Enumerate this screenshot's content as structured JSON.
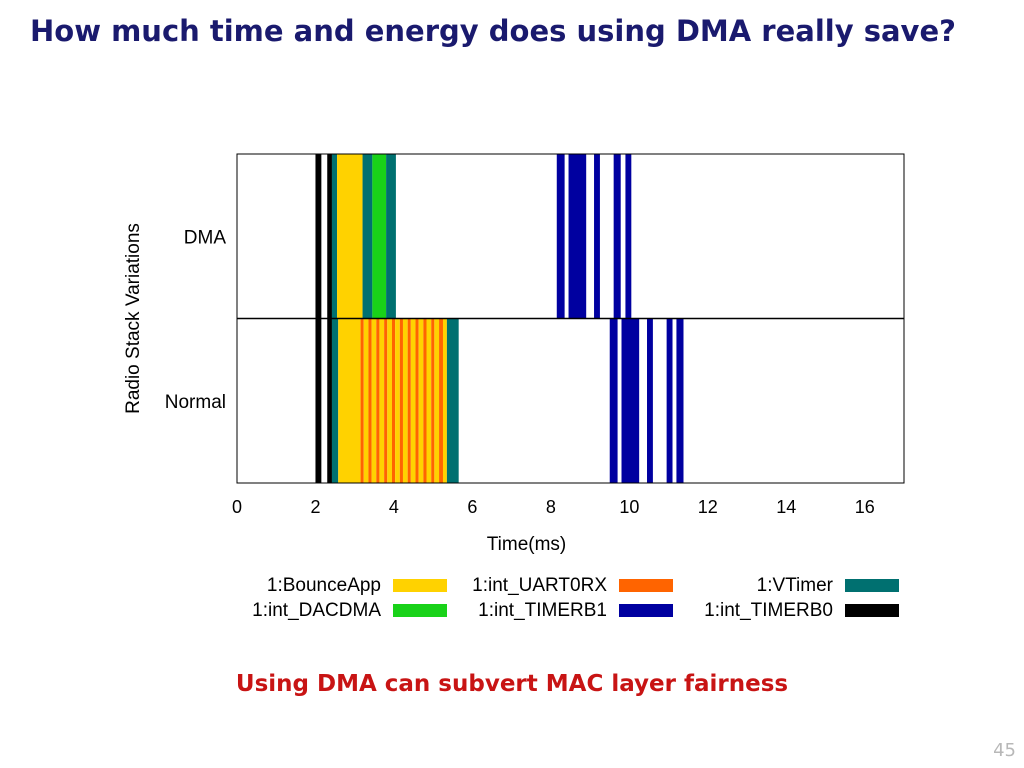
{
  "slide": {
    "title": "How much time and energy does using DMA really save?",
    "callout": "Using DMA can subvert MAC layer fairness",
    "page_number": "45"
  },
  "colors": {
    "title": "#1a1a6e",
    "callout": "#c81414",
    "page_number": "#b8b8b8"
  },
  "chart_data": {
    "type": "timeline",
    "xlabel": "Time(ms)",
    "ylabel": "Radio Stack Variations",
    "xlim": [
      0,
      17
    ],
    "xticks": [
      0,
      2,
      4,
      6,
      8,
      10,
      12,
      14,
      16
    ],
    "grid": false,
    "legend_position": "bottom",
    "categories": [
      "DMA",
      "Normal"
    ],
    "series": [
      {
        "name": "1:BounceApp",
        "color": "#ffd200"
      },
      {
        "name": "1:int_UART0RX",
        "color": "#ff6400"
      },
      {
        "name": "1:VTimer",
        "color": "#007070"
      },
      {
        "name": "1:int_DACDMA",
        "color": "#19d219"
      },
      {
        "name": "1:int_TIMERB1",
        "color": "#0000a0"
      },
      {
        "name": "1:int_TIMERB0",
        "color": "#000000"
      }
    ],
    "events": {
      "DMA": [
        {
          "series": "1:int_TIMERB0",
          "start": 2.0,
          "end": 2.15
        },
        {
          "series": "1:int_TIMERB0",
          "start": 2.3,
          "end": 2.42
        },
        {
          "series": "1:VTimer",
          "start": 2.42,
          "end": 2.55
        },
        {
          "series": "1:BounceApp",
          "start": 2.55,
          "end": 3.2
        },
        {
          "series": "1:VTimer",
          "start": 3.2,
          "end": 3.45
        },
        {
          "series": "1:int_DACDMA",
          "start": 3.45,
          "end": 3.8
        },
        {
          "series": "1:VTimer",
          "start": 3.8,
          "end": 4.05
        },
        {
          "series": "1:int_TIMERB1",
          "start": 8.15,
          "end": 8.35
        },
        {
          "series": "1:int_TIMERB1",
          "start": 8.45,
          "end": 8.9
        },
        {
          "series": "1:int_TIMERB1",
          "start": 9.1,
          "end": 9.25
        },
        {
          "series": "1:int_TIMERB1",
          "start": 9.6,
          "end": 9.78
        },
        {
          "series": "1:int_TIMERB1",
          "start": 9.9,
          "end": 10.05
        }
      ],
      "Normal": [
        {
          "series": "1:int_TIMERB0",
          "start": 2.0,
          "end": 2.15
        },
        {
          "series": "1:int_TIMERB0",
          "start": 2.3,
          "end": 2.42
        },
        {
          "series": "1:VTimer",
          "start": 2.42,
          "end": 2.58
        },
        {
          "series": "1:BounceApp",
          "start": 2.58,
          "end": 3.15
        },
        {
          "series": "1:int_UART0RX",
          "start": 3.15,
          "end": 3.23
        },
        {
          "series": "1:BounceApp",
          "start": 3.23,
          "end": 3.35
        },
        {
          "series": "1:int_UART0RX",
          "start": 3.35,
          "end": 3.43
        },
        {
          "series": "1:BounceApp",
          "start": 3.43,
          "end": 3.55
        },
        {
          "series": "1:int_UART0RX",
          "start": 3.55,
          "end": 3.63
        },
        {
          "series": "1:BounceApp",
          "start": 3.63,
          "end": 3.75
        },
        {
          "series": "1:int_UART0RX",
          "start": 3.75,
          "end": 3.83
        },
        {
          "series": "1:BounceApp",
          "start": 3.83,
          "end": 3.95
        },
        {
          "series": "1:int_UART0RX",
          "start": 3.95,
          "end": 4.03
        },
        {
          "series": "1:BounceApp",
          "start": 4.03,
          "end": 4.15
        },
        {
          "series": "1:int_UART0RX",
          "start": 4.15,
          "end": 4.23
        },
        {
          "series": "1:BounceApp",
          "start": 4.23,
          "end": 4.35
        },
        {
          "series": "1:int_UART0RX",
          "start": 4.35,
          "end": 4.43
        },
        {
          "series": "1:BounceApp",
          "start": 4.43,
          "end": 4.55
        },
        {
          "series": "1:int_UART0RX",
          "start": 4.55,
          "end": 4.63
        },
        {
          "series": "1:BounceApp",
          "start": 4.63,
          "end": 4.75
        },
        {
          "series": "1:int_UART0RX",
          "start": 4.75,
          "end": 4.83
        },
        {
          "series": "1:BounceApp",
          "start": 4.83,
          "end": 4.95
        },
        {
          "series": "1:int_UART0RX",
          "start": 4.95,
          "end": 5.03
        },
        {
          "series": "1:BounceApp",
          "start": 5.03,
          "end": 5.15
        },
        {
          "series": "1:int_UART0RX",
          "start": 5.15,
          "end": 5.25
        },
        {
          "series": "1:BounceApp",
          "start": 5.25,
          "end": 5.35
        },
        {
          "series": "1:VTimer",
          "start": 5.35,
          "end": 5.65
        },
        {
          "series": "1:int_TIMERB1",
          "start": 9.5,
          "end": 9.7
        },
        {
          "series": "1:int_TIMERB1",
          "start": 9.8,
          "end": 10.25
        },
        {
          "series": "1:int_TIMERB1",
          "start": 10.45,
          "end": 10.6
        },
        {
          "series": "1:int_TIMERB1",
          "start": 10.95,
          "end": 11.1
        },
        {
          "series": "1:int_TIMERB1",
          "start": 11.2,
          "end": 11.38
        }
      ]
    }
  }
}
